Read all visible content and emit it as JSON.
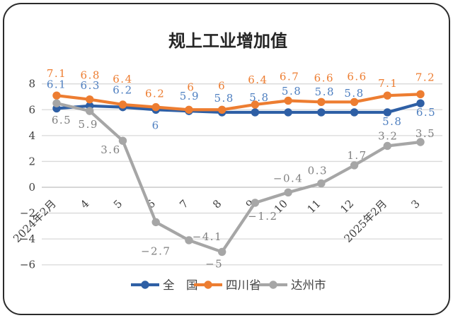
{
  "window": {
    "background": "#ffffff",
    "border_color": "#2b2b2b"
  },
  "chart_data": {
    "type": "line",
    "title": "规上工业增加值",
    "title_color": "#262626",
    "categories": [
      "2024年2月",
      "4",
      "5",
      "6",
      "7",
      "8",
      "9",
      "10",
      "11",
      "12",
      "2025年2月",
      "3"
    ],
    "series": [
      {
        "name": "全　国",
        "line_color": "#2E5FA5",
        "label_color": "#4E7FC0",
        "values": [
          6.1,
          6.3,
          6.2,
          6,
          5.9,
          5.8,
          5.8,
          5.8,
          5.8,
          5.8,
          5.8,
          6.5
        ],
        "label_dx": [
          0,
          1,
          0,
          0,
          1,
          3,
          6,
          5,
          5,
          0,
          7,
          8
        ],
        "label_dy": [
          -34,
          -29,
          -24,
          22,
          -21,
          -20,
          -21,
          -30,
          -29,
          -27,
          13,
          13
        ]
      },
      {
        "name": "四川省",
        "line_color": "#ED7D31",
        "label_color": "#ED7D31",
        "values": [
          7.1,
          6.8,
          6.4,
          6.2,
          6,
          6,
          6.4,
          6.7,
          6.6,
          6.6,
          7.1,
          7.2
        ],
        "label_dx": [
          0,
          1,
          0,
          -1,
          3,
          0,
          4,
          2,
          4,
          4,
          1,
          7
        ],
        "label_dy": [
          -31,
          -34,
          -36,
          -19,
          -32,
          -34,
          -35,
          -34,
          -34,
          -36,
          -17,
          -24
        ]
      },
      {
        "name": "达州市",
        "line_color": "#A6A6A6",
        "label_color": "#808080",
        "values": [
          6.5,
          5.9,
          3.6,
          -2.7,
          -4.1,
          -5,
          -1.2,
          -0.4,
          0.3,
          1.7,
          3.2,
          3.5
        ],
        "label_dx": [
          7,
          -2,
          -17,
          0,
          26,
          -11,
          11,
          0,
          -5,
          4,
          1,
          7
        ],
        "label_dy": [
          24,
          19,
          13,
          41,
          -5,
          17,
          19,
          -20,
          -18,
          -14,
          -14,
          -12
        ]
      }
    ],
    "y_ticks": [
      8,
      6,
      4,
      2,
      0,
      -2,
      -4,
      -6
    ],
    "ylim": [
      -6,
      8
    ],
    "grid": true,
    "gridline_color": "#D9D9D9",
    "zero_line_color": "#BFBFBF",
    "axis_text_color": "#404040",
    "legend_position": "bottom",
    "legend_text_color": "#404040"
  }
}
